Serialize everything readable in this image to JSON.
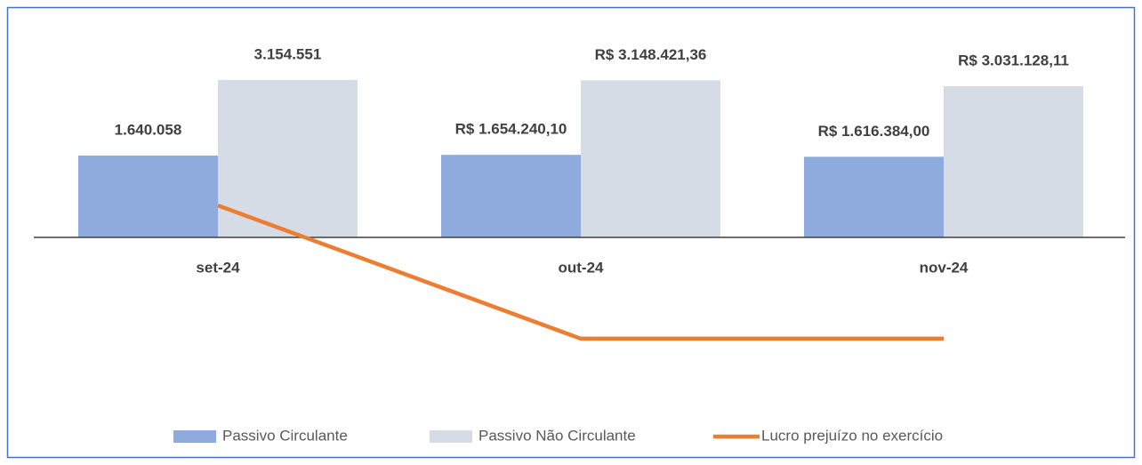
{
  "chart_data": {
    "type": "bar",
    "categories": [
      "set-24",
      "out-24",
      "nov-24"
    ],
    "series": [
      {
        "name": "Passivo Circulante",
        "color": "#8FAADC",
        "values": [
          1640058,
          1654240.1,
          1616384.0
        ],
        "value_labels": [
          "1.640.058",
          "R$ 1.654.240,10",
          "R$ 1.616.384,00"
        ]
      },
      {
        "name": "Passivo Não Circulante",
        "color": "#D6DCE5",
        "values": [
          3154551,
          3148421.36,
          3031128.11
        ],
        "value_labels": [
          "3.154.551",
          "R$ 3.148.421,36",
          "R$ 3.031.128,11"
        ]
      },
      {
        "name": "Lucro prejuízo no exercício",
        "type": "line",
        "color": "#ED7D31",
        "values": [
          640000,
          -2030000,
          -2030000
        ]
      }
    ],
    "ylim": [
      -2500000,
      3500000
    ],
    "legend": "bottom"
  }
}
